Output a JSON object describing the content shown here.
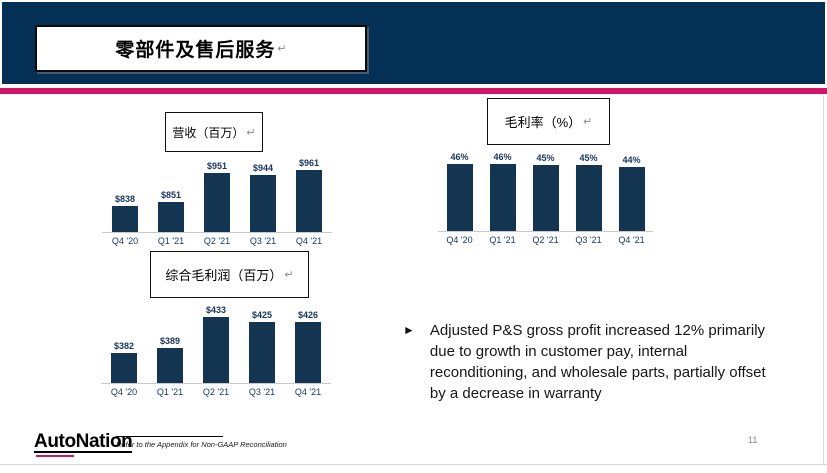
{
  "slide": {
    "title": "零部件及售后服务",
    "return_mark": "↵",
    "page_number": "11",
    "footnote": "Refer to the Appendix for Non-GAAP Reconciliation",
    "logo_text": "AutoNation"
  },
  "bullet": {
    "marker": "►",
    "text": "Adjusted P&S gross profit increased 12% primarily due to growth in customer pay, internal reconditioning, and wholesale parts, partially offset by a decrease in warranty"
  },
  "colors": {
    "header_navy": "#053056",
    "accent_pink": "#D2156B",
    "bar_navy": "#133552",
    "label_navy": "#17365D"
  },
  "chart_data": [
    {
      "type": "bar",
      "title": "营收（百万）",
      "categories": [
        "Q4 '20",
        "Q1 '21",
        "Q2 '21",
        "Q3 '21",
        "Q4 '21"
      ],
      "values": [
        838,
        851,
        951,
        944,
        961
      ],
      "labels": [
        "$838",
        "$851",
        "$951",
        "$944",
        "$961"
      ],
      "ylim": [
        750,
        1000
      ],
      "grid": false,
      "bar_color": "#133552"
    },
    {
      "type": "bar",
      "title": "毛利率（%）",
      "categories": [
        "Q4 '20",
        "Q1 '21",
        "Q2 '21",
        "Q3 '21",
        "Q4 '21"
      ],
      "values": [
        46,
        46,
        45,
        45,
        44
      ],
      "labels": [
        "46%",
        "46%",
        "45%",
        "45%",
        "44%"
      ],
      "ylim": [
        0,
        50
      ],
      "grid": false,
      "bar_color": "#133552"
    },
    {
      "type": "bar",
      "title": "综合毛利润（百万）",
      "categories": [
        "Q4 '20",
        "Q1 '21",
        "Q2 '21",
        "Q3 '21",
        "Q4 '21"
      ],
      "values": [
        382,
        389,
        433,
        425,
        426
      ],
      "labels": [
        "$382",
        "$389",
        "$433",
        "$425",
        "$426"
      ],
      "ylim": [
        340,
        445
      ],
      "grid": false,
      "bar_color": "#133552"
    }
  ]
}
